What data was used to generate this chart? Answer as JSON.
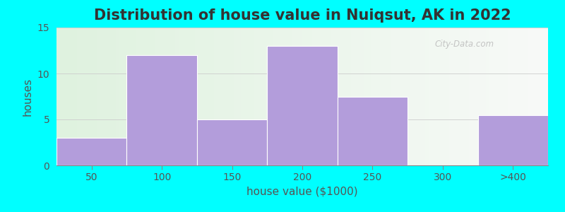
{
  "title": "Distribution of house value in Nuiqsut, AK in 2022",
  "xlabel": "house value ($1000)",
  "ylabel": "houses",
  "categories": [
    "50",
    "100",
    "150",
    "200",
    "250",
    "300",
    ">400"
  ],
  "values": [
    3,
    12,
    5,
    13,
    7.5,
    0,
    5.5
  ],
  "bar_color": "#b39ddb",
  "bar_edge_color": "#c8b8e8",
  "ylim": [
    0,
    15
  ],
  "yticks": [
    0,
    5,
    10,
    15
  ],
  "bg_outer": "#00ffff",
  "bg_left_color": "#dff2df",
  "bg_right_color": "#f8f8f8",
  "title_fontsize": 15,
  "axis_label_fontsize": 11,
  "tick_fontsize": 10,
  "watermark_text": "City-Data.com",
  "bar_width": 1.0
}
